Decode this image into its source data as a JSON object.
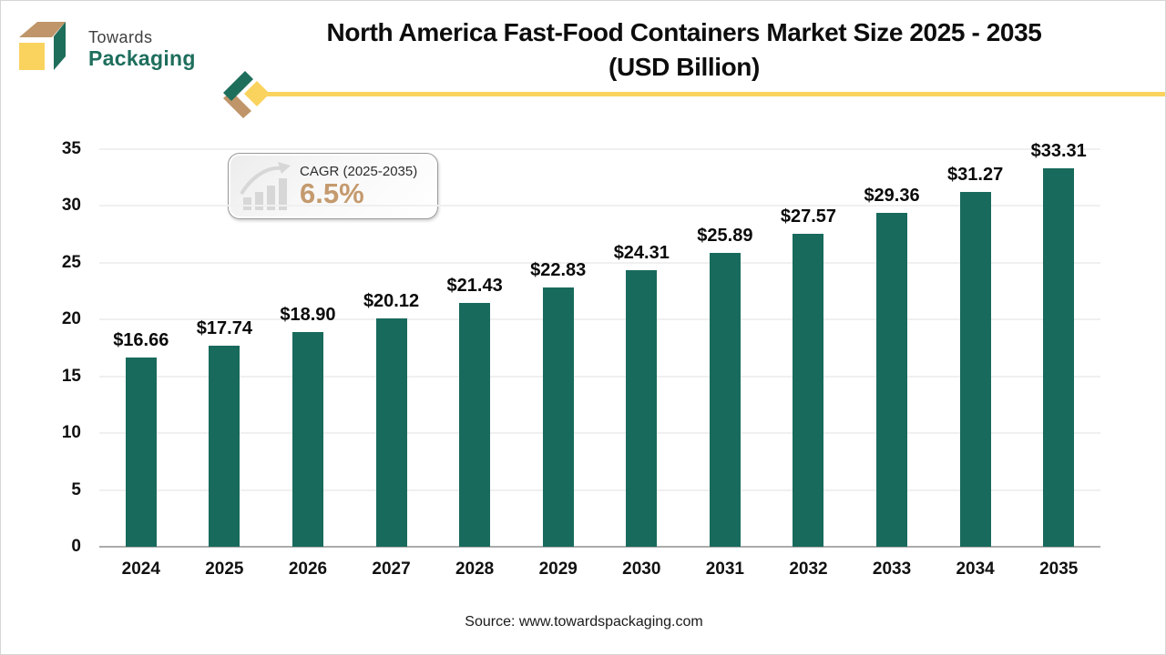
{
  "brand": {
    "name_line1": "Towards",
    "name_line2": "Packaging",
    "logo_icon": "packaging-box-3d-icon",
    "colors": {
      "green": "#1E6E5C",
      "tan": "#BF9569",
      "yellow": "#F9D35E"
    }
  },
  "header": {
    "title_line1": "North America Fast-Food Containers Market Size 2025 - 2035",
    "title_line2": "(USD Billion)"
  },
  "cagr_badge": {
    "label": "CAGR (2025-2035)",
    "value": "6.5%",
    "icon": "growth-trend-icon",
    "icon_color": "#d7d7d7",
    "value_color": "#C49A6E"
  },
  "chart_data": {
    "type": "bar",
    "title": "North America Fast-Food Containers Market Size 2025 - 2035 (USD Billion)",
    "unit": "USD Billion",
    "categories": [
      "2024",
      "2025",
      "2026",
      "2027",
      "2028",
      "2029",
      "2030",
      "2031",
      "2032",
      "2033",
      "2034",
      "2035"
    ],
    "values": [
      16.66,
      17.74,
      18.9,
      20.12,
      21.43,
      22.83,
      24.31,
      25.89,
      27.57,
      29.36,
      31.27,
      33.31
    ],
    "value_labels": [
      "$16.66",
      "$17.74",
      "$18.90",
      "$20.12",
      "$21.43",
      "$22.83",
      "$24.31",
      "$25.89",
      "$27.57",
      "$29.36",
      "$31.27",
      "$33.31"
    ],
    "xlabel": "",
    "ylabel": "",
    "ylim": [
      0,
      35
    ],
    "yticks": [
      0,
      5,
      10,
      15,
      20,
      25,
      30,
      35
    ],
    "grid": true,
    "legend": "none",
    "bar_color": "#186A5C",
    "gridline_color": "#F0F0F0",
    "axis_line_color": "#ABABAB"
  },
  "footer": {
    "source": "Source: www.towardspackaging.com"
  }
}
